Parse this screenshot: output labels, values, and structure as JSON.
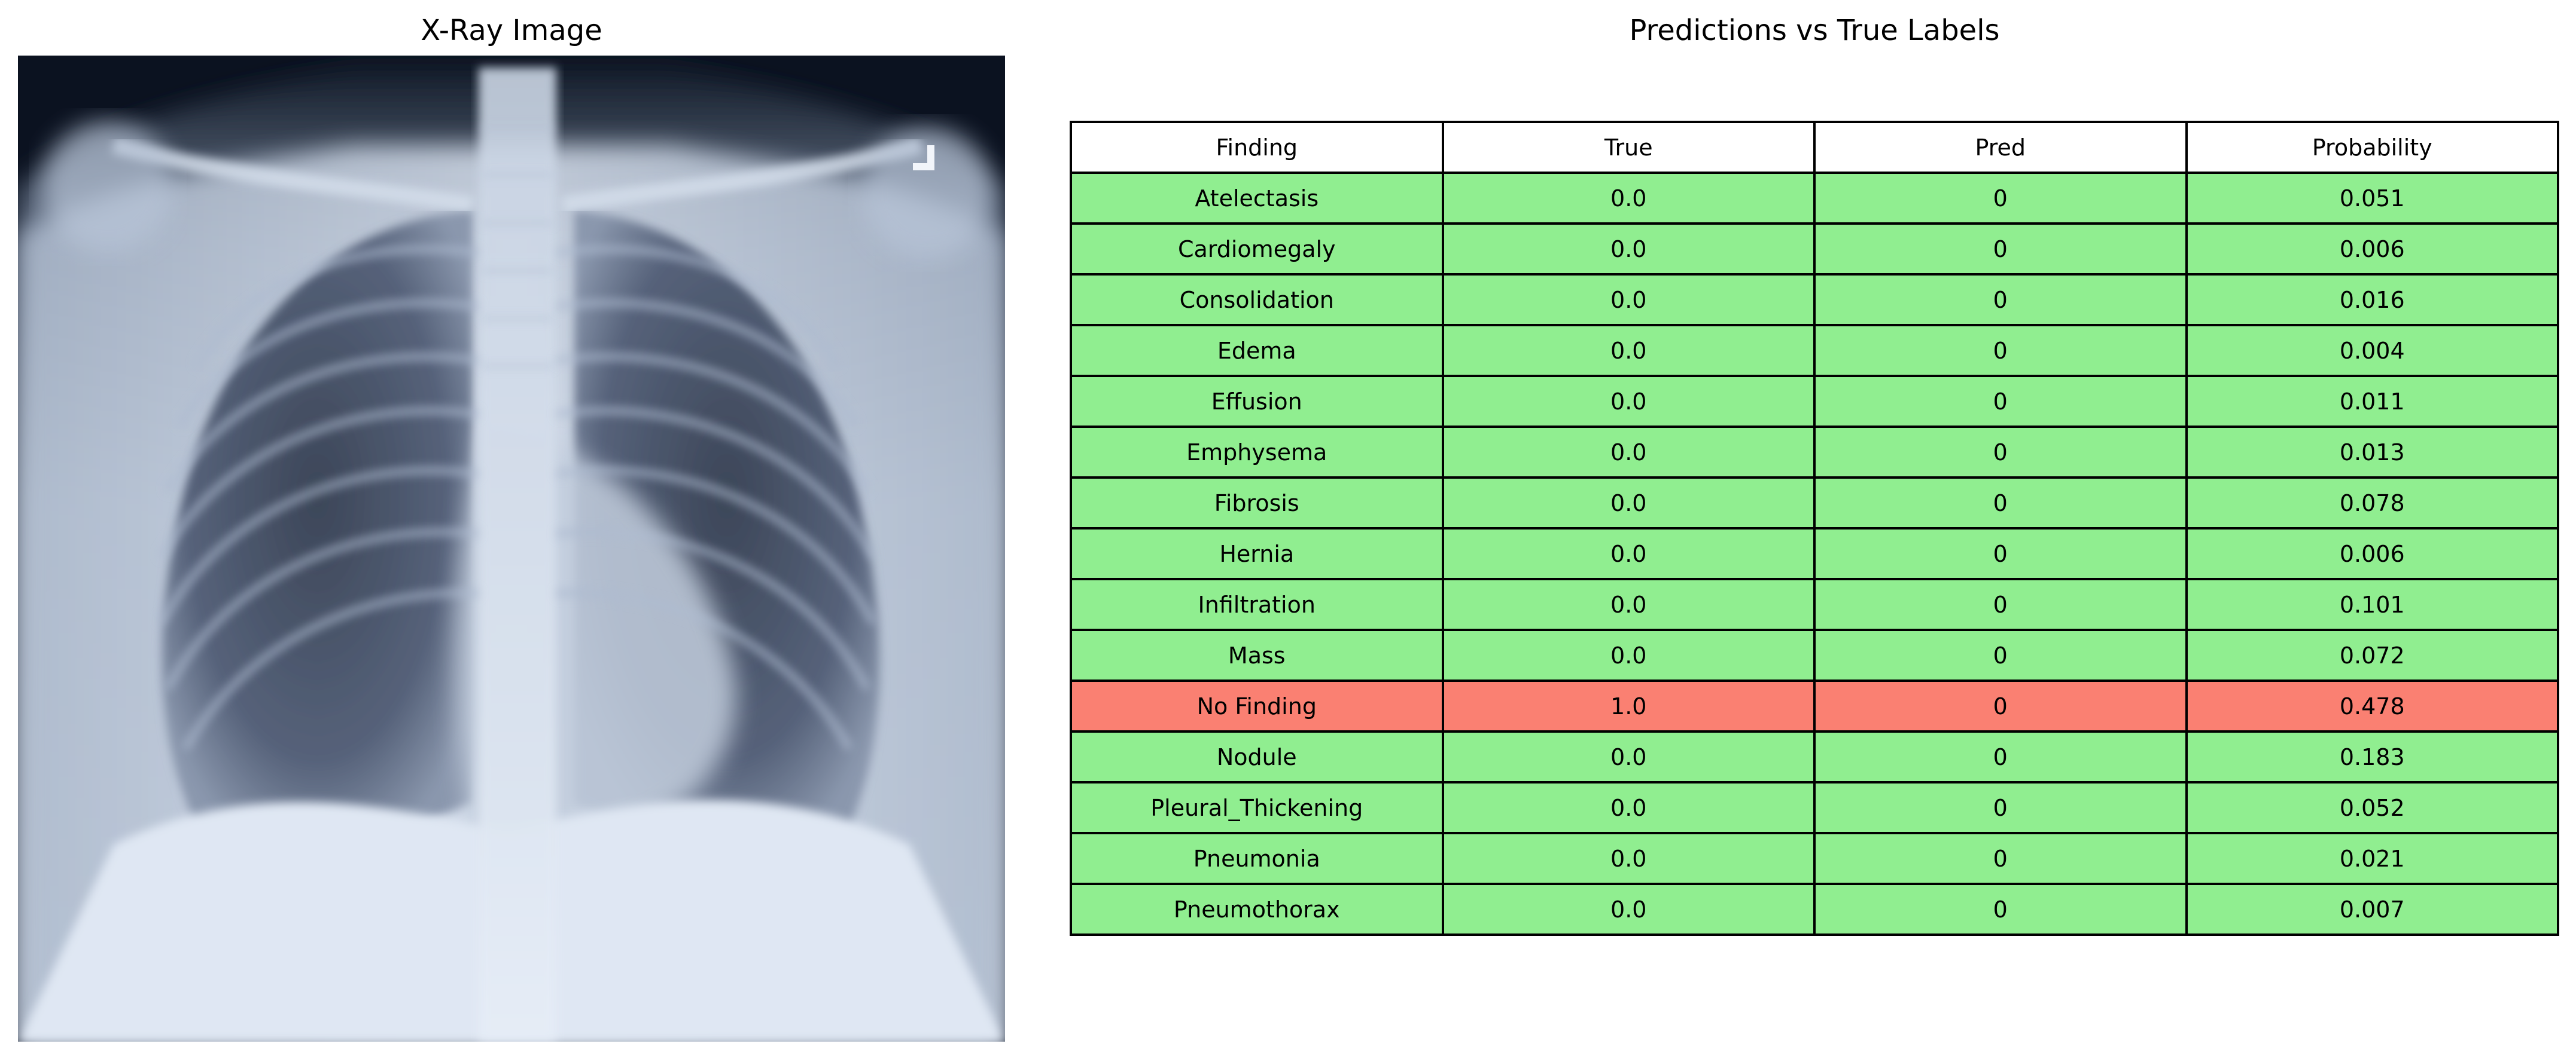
{
  "xray_panel": {
    "title": "X-Ray Image"
  },
  "table_panel": {
    "title": "Predictions vs True Labels"
  },
  "colors": {
    "match": "#90ee90",
    "mismatch": "#fa8072",
    "header": "#ffffff"
  },
  "chart_data": {
    "type": "table",
    "title": "Predictions vs True Labels",
    "columns": [
      "Finding",
      "True",
      "Pred",
      "Probability"
    ],
    "rows": [
      {
        "finding": "Atelectasis",
        "true": "0.0",
        "pred": "0",
        "probability": "0.051",
        "status": "match"
      },
      {
        "finding": "Cardiomegaly",
        "true": "0.0",
        "pred": "0",
        "probability": "0.006",
        "status": "match"
      },
      {
        "finding": "Consolidation",
        "true": "0.0",
        "pred": "0",
        "probability": "0.016",
        "status": "match"
      },
      {
        "finding": "Edema",
        "true": "0.0",
        "pred": "0",
        "probability": "0.004",
        "status": "match"
      },
      {
        "finding": "Effusion",
        "true": "0.0",
        "pred": "0",
        "probability": "0.011",
        "status": "match"
      },
      {
        "finding": "Emphysema",
        "true": "0.0",
        "pred": "0",
        "probability": "0.013",
        "status": "match"
      },
      {
        "finding": "Fibrosis",
        "true": "0.0",
        "pred": "0",
        "probability": "0.078",
        "status": "match"
      },
      {
        "finding": "Hernia",
        "true": "0.0",
        "pred": "0",
        "probability": "0.006",
        "status": "match"
      },
      {
        "finding": "Infiltration",
        "true": "0.0",
        "pred": "0",
        "probability": "0.101",
        "status": "match"
      },
      {
        "finding": "Mass",
        "true": "0.0",
        "pred": "0",
        "probability": "0.072",
        "status": "match"
      },
      {
        "finding": "No Finding",
        "true": "1.0",
        "pred": "0",
        "probability": "0.478",
        "status": "mismatch"
      },
      {
        "finding": "Nodule",
        "true": "0.0",
        "pred": "0",
        "probability": "0.183",
        "status": "match"
      },
      {
        "finding": "Pleural_Thickening",
        "true": "0.0",
        "pred": "0",
        "probability": "0.052",
        "status": "match"
      },
      {
        "finding": "Pneumonia",
        "true": "0.0",
        "pred": "0",
        "probability": "0.021",
        "status": "match"
      },
      {
        "finding": "Pneumothorax",
        "true": "0.0",
        "pred": "0",
        "probability": "0.007",
        "status": "match"
      }
    ]
  }
}
